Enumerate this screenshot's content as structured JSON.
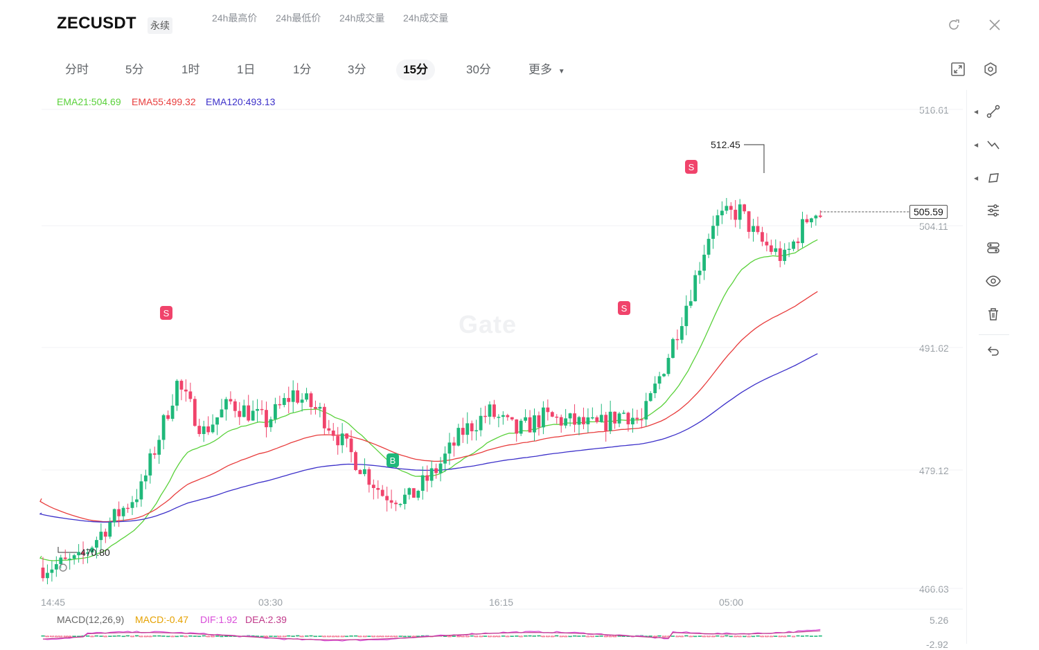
{
  "header": {
    "symbol": "ZECUSDT",
    "contract_type": "永续",
    "stats": [
      "24h最高价",
      "24h最低价",
      "24h成交量",
      "24h成交量"
    ]
  },
  "timeframes": [
    {
      "label": "分时",
      "active": false
    },
    {
      "label": "5分",
      "active": false
    },
    {
      "label": "1时",
      "active": false
    },
    {
      "label": "1日",
      "active": false
    },
    {
      "label": "1分",
      "active": false
    },
    {
      "label": "3分",
      "active": false
    },
    {
      "label": "15分",
      "active": true
    },
    {
      "label": "30分",
      "active": false
    }
  ],
  "more_label": "更多",
  "indicators": {
    "ema21": "EMA21:504.69",
    "ema55": "EMA55:499.32",
    "ema120": "EMA120:493.13"
  },
  "macd": {
    "params": "MACD(12,26,9)",
    "macd": "MACD:-0.47",
    "dif": "DIF:1.92",
    "dea": "DEA:2.39",
    "axis_top": "5.26",
    "axis_bottom": "-2.92"
  },
  "watermark": "Gate",
  "colors": {
    "up": "#1fb87a",
    "down": "#f0436b",
    "ema21": "#59d13a",
    "ema55": "#e83c3c",
    "ema120": "#3b2fc9",
    "macd_dif": "#d94bd9",
    "macd_dea": "#c0398a"
  },
  "tools": [
    "line-tool-icon",
    "trend-tool-icon",
    "shape-tool-icon",
    "settings-sliders-icon",
    "indicator-toggle-icon",
    "eye-icon",
    "trash-icon",
    "undo-icon"
  ],
  "chart_data": {
    "type": "candlestick",
    "price_axis": [
      "516.61",
      "504.11",
      "491.62",
      "479.12",
      "466.63"
    ],
    "time_axis": [
      "14:45",
      "03:30",
      "16:15",
      "05:00"
    ],
    "last_price": "505.59",
    "high_marker": "512.45",
    "low_marker": "470.80",
    "ylim": [
      466.63,
      516.61
    ],
    "signals": [
      {
        "type": "S",
        "near_candle": 30
      },
      {
        "type": "B",
        "near_candle": 85
      },
      {
        "type": "S",
        "near_candle": 140
      },
      {
        "type": "S",
        "near_candle": 156
      }
    ]
  }
}
